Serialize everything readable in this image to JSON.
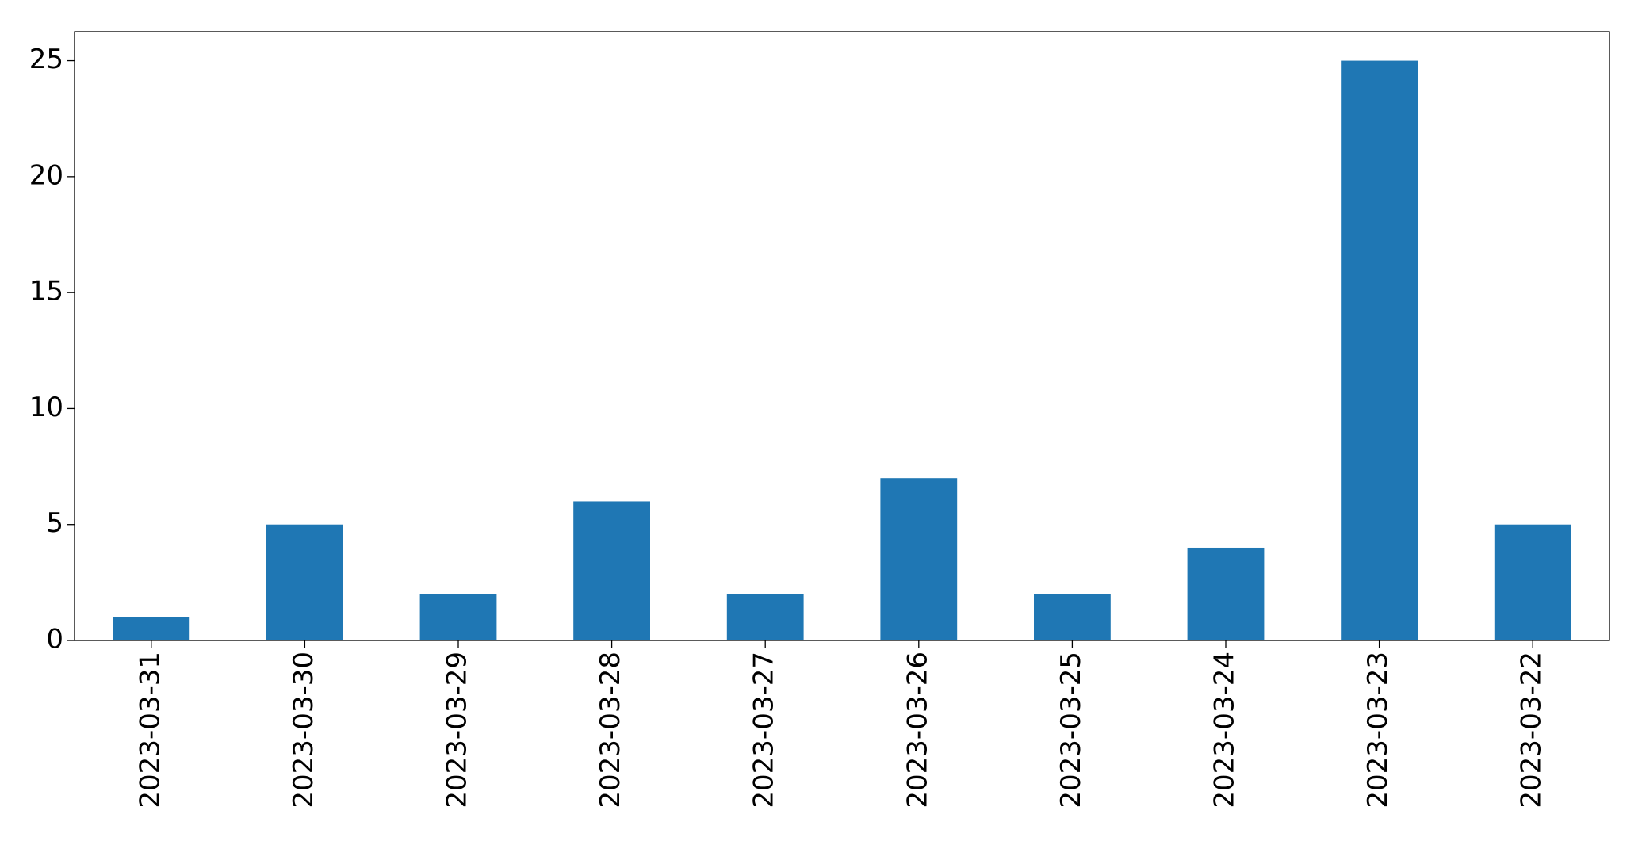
{
  "chart_data": {
    "type": "bar",
    "categories": [
      "2023-03-31",
      "2023-03-30",
      "2023-03-29",
      "2023-03-28",
      "2023-03-27",
      "2023-03-26",
      "2023-03-25",
      "2023-03-24",
      "2023-03-23",
      "2023-03-22"
    ],
    "values": [
      1,
      5,
      2,
      6,
      2,
      7,
      2,
      4,
      25,
      5
    ],
    "color": "#1f77b4",
    "ylim": [
      0,
      26.25
    ],
    "yticks": [
      0,
      5,
      10,
      15,
      20,
      25
    ],
    "grid": false
  }
}
